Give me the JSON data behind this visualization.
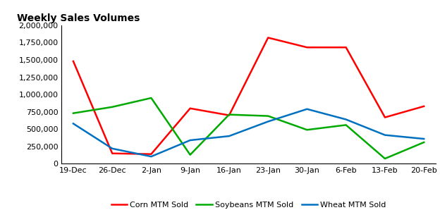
{
  "title": "Weekly Sales Volumes",
  "x_labels": [
    "19-Dec",
    "26-Dec",
    "2-Jan",
    "9-Jan",
    "16-Jan",
    "23-Jan",
    "30-Jan",
    "6-Feb",
    "13-Feb",
    "20-Feb"
  ],
  "corn_values": [
    1480000,
    150000,
    140000,
    800000,
    700000,
    1820000,
    1680000,
    1680000,
    670000,
    830000
  ],
  "soybeans_values": [
    730000,
    820000,
    950000,
    130000,
    710000,
    690000,
    490000,
    560000,
    75000,
    310000
  ],
  "wheat_values": [
    580000,
    220000,
    105000,
    340000,
    400000,
    610000,
    790000,
    640000,
    415000,
    360000
  ],
  "corn_color": "#FF0000",
  "soybeans_color": "#00AA00",
  "wheat_color": "#0070C0",
  "linewidth": 1.8,
  "ylim": [
    0,
    2000000
  ],
  "yticks": [
    0,
    250000,
    500000,
    750000,
    1000000,
    1250000,
    1500000,
    1750000,
    2000000
  ],
  "background_color": "#FFFFFF",
  "title_fontsize": 10,
  "tick_fontsize": 8,
  "legend_fontsize": 8
}
